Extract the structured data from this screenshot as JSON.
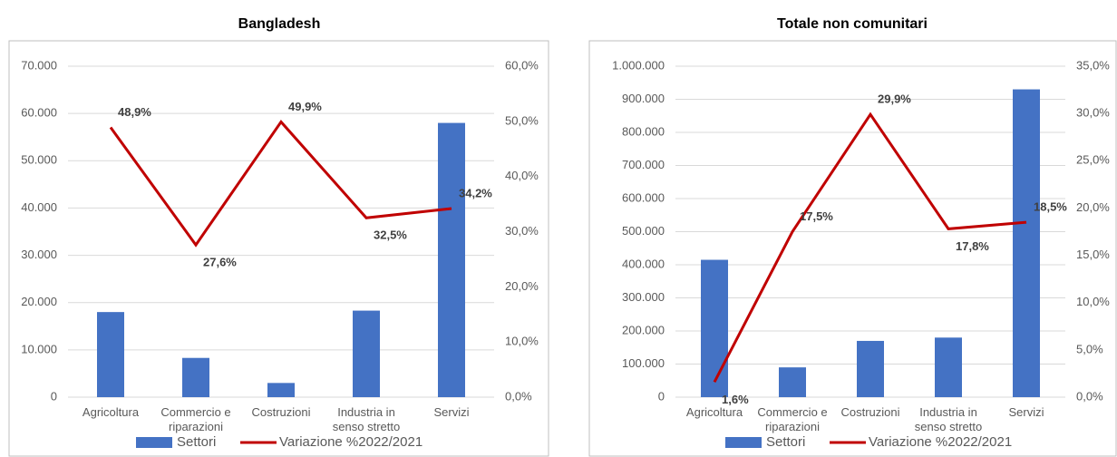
{
  "chart_data": [
    {
      "type": "bar-line",
      "title": "Bangladesh",
      "categories": [
        "Agricoltura",
        "Commercio e riparazioni",
        "Costruzioni",
        "Industria in senso stretto",
        "Servizi"
      ],
      "series": [
        {
          "name": "Settori",
          "color": "#4472c4",
          "type": "bar",
          "values": [
            18000,
            8300,
            3000,
            18300,
            58000
          ]
        },
        {
          "name": "Variazione %2022/2021",
          "color": "#c00000",
          "type": "line",
          "axis": "y2",
          "values": [
            48.9,
            27.6,
            49.9,
            32.5,
            34.2
          ],
          "value_labels": [
            "48,9%",
            "27,6%",
            "49,9%",
            "32,5%",
            "34,2%"
          ]
        }
      ],
      "ylim": [
        0,
        70000
      ],
      "yticks": [
        0,
        {
          "value": 10000,
          "label": "10.000"
        },
        {
          "value": 20000,
          "label": "20.000"
        },
        {
          "value": 30000,
          "label": "30.000"
        },
        {
          "value": 40000,
          "label": "40.000"
        },
        {
          "value": 50000,
          "label": "50.000"
        },
        {
          "value": 60000,
          "label": "60.000"
        },
        {
          "value": 70000,
          "label": "70.000"
        }
      ],
      "y2lim": [
        0,
        60
      ],
      "y2ticks": [
        {
          "value": 0,
          "label": "0,0%"
        },
        {
          "value": 10,
          "label": "10,0%"
        },
        {
          "value": 20,
          "label": "20,0%"
        },
        {
          "value": 30,
          "label": "30,0%"
        },
        {
          "value": 40,
          "label": "40,0%"
        },
        {
          "value": 50,
          "label": "50,0%"
        },
        {
          "value": 60,
          "label": "60,0%"
        }
      ],
      "grid": true,
      "legend": "bottom"
    },
    {
      "type": "bar-line",
      "title": "Totale non comunitari",
      "categories": [
        "Agricoltura",
        "Commercio e riparazioni",
        "Costruzioni",
        "Industria in senso stretto",
        "Servizi"
      ],
      "series": [
        {
          "name": "Settori",
          "color": "#4472c4",
          "type": "bar",
          "values": [
            415000,
            90000,
            170000,
            180000,
            930000
          ]
        },
        {
          "name": "Variazione %2022/2021",
          "color": "#c00000",
          "type": "line",
          "axis": "y2",
          "values": [
            1.6,
            17.5,
            29.9,
            17.8,
            18.5
          ],
          "value_labels": [
            "1,6%",
            "17,5%",
            "29,9%",
            "17,8%",
            "18,5%"
          ]
        }
      ],
      "ylim": [
        0,
        1000000
      ],
      "yticks": [
        0,
        {
          "value": 100000,
          "label": "100.000"
        },
        {
          "value": 200000,
          "label": "200.000"
        },
        {
          "value": 300000,
          "label": "300.000"
        },
        {
          "value": 400000,
          "label": "400.000"
        },
        {
          "value": 500000,
          "label": "500.000"
        },
        {
          "value": 600000,
          "label": "600.000"
        },
        {
          "value": 700000,
          "label": "700.000"
        },
        {
          "value": 800000,
          "label": "800.000"
        },
        {
          "value": 900000,
          "label": "900.000"
        },
        {
          "value": 1000000,
          "label": "1.000.000"
        }
      ],
      "y2lim": [
        0,
        35
      ],
      "y2ticks": [
        {
          "value": 0,
          "label": "0,0%"
        },
        {
          "value": 5,
          "label": "5,0%"
        },
        {
          "value": 10,
          "label": "10,0%"
        },
        {
          "value": 15,
          "label": "15,0%"
        },
        {
          "value": 20,
          "label": "20,0%"
        },
        {
          "value": 25,
          "label": "25,0%"
        },
        {
          "value": 30,
          "label": "30,0%"
        },
        {
          "value": 35,
          "label": "35,0%"
        }
      ],
      "grid": true,
      "legend": "bottom"
    }
  ]
}
